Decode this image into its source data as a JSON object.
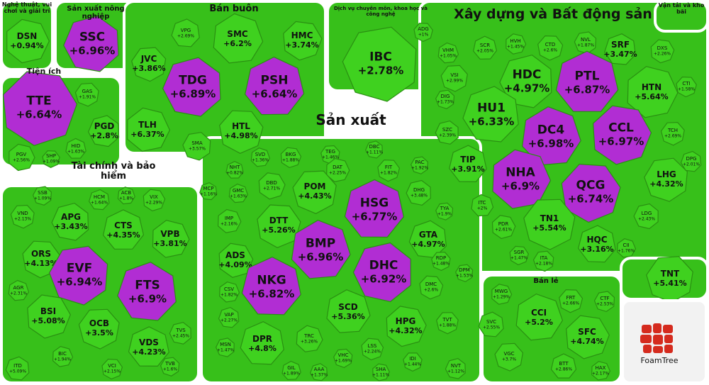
{
  "chart_data": {
    "type": "treemap",
    "logo": "FoamTree",
    "groups": [
      {
        "name": "Nghệ thuật, vui chơi và giải trí",
        "cells": [
          {
            "label": "DSN",
            "value": 0.94,
            "value_label": "+0.94%",
            "color": "#3fd11f"
          }
        ]
      },
      {
        "name": "Sản xuất nông nghiệp",
        "cells": [
          {
            "label": "SSC",
            "value": 6.96,
            "value_label": "+6.96%",
            "color": "#b12dd3"
          }
        ]
      },
      {
        "name": "Tiện ích",
        "cells": [
          {
            "label": "TTE",
            "value": 6.64,
            "value_label": "+6.64%",
            "color": "#b12dd3"
          },
          {
            "label": "GAS",
            "value": 1.91,
            "value_label": "+1.91%",
            "color": "#3fd11f"
          },
          {
            "label": "PGD",
            "value": 2.8,
            "value_label": "+2.8%",
            "color": "#3fd11f"
          },
          {
            "label": "HID",
            "value": 1.63,
            "value_label": "+1.63%",
            "color": "#3fd11f"
          },
          {
            "label": "PGV",
            "value": 2.56,
            "value_label": "+2.56%",
            "color": "#3fd11f"
          },
          {
            "label": "SHP",
            "value": 1.09,
            "value_label": "+1.09%",
            "color": "#3fd11f"
          }
        ]
      },
      {
        "name": "Bán buôn",
        "cells": [
          {
            "label": "VPG",
            "value": 2.69,
            "value_label": "+2.69%",
            "color": "#3fd11f"
          },
          {
            "label": "SMC",
            "value": 6.2,
            "value_label": "+6.2%",
            "color": "#3fd11f"
          },
          {
            "label": "HMC",
            "value": 3.74,
            "value_label": "+3.74%",
            "color": "#3fd11f"
          },
          {
            "label": "JVC",
            "value": 3.86,
            "value_label": "+3.86%",
            "color": "#3fd11f"
          },
          {
            "label": "TDG",
            "value": 6.89,
            "value_label": "+6.89%",
            "color": "#b12dd3"
          },
          {
            "label": "PSH",
            "value": 6.64,
            "value_label": "+6.64%",
            "color": "#b12dd3"
          },
          {
            "label": "TLH",
            "value": 6.37,
            "value_label": "+6.37%",
            "color": "#3fd11f"
          },
          {
            "label": "HTL",
            "value": 4.98,
            "value_label": "+4.98%",
            "color": "#3fd11f"
          },
          {
            "label": "SMA",
            "value": 3.57,
            "value_label": "+3.57%",
            "color": "#3fd11f"
          }
        ]
      },
      {
        "name": "Dịch vụ chuyên môn, khoa học và công nghệ",
        "cells": [
          {
            "label": "ADG",
            "value": 1,
            "value_label": "+1%",
            "color": "#3fd11f"
          },
          {
            "label": "IBC",
            "value": 2.78,
            "value_label": "+2.78%",
            "color": "#3fd11f"
          }
        ]
      },
      {
        "name": "Xây dựng và Bất động sản",
        "cells": [
          {
            "label": "SCR",
            "value": 2.05,
            "value_label": "+2.05%",
            "color": "#3fd11f"
          },
          {
            "label": "HVH",
            "value": 1.45,
            "value_label": "+1.45%",
            "color": "#3fd11f"
          },
          {
            "label": "CTD",
            "value": 2.6,
            "value_label": "+2.6%",
            "color": "#3fd11f"
          },
          {
            "label": "NVL",
            "value": 1.87,
            "value_label": "+1.87%",
            "color": "#3fd11f"
          },
          {
            "label": "SRF",
            "value": 3.47,
            "value_label": "+3.47%",
            "color": "#3fd11f"
          },
          {
            "label": "VHM",
            "value": 1.05,
            "value_label": "+1.05%",
            "color": "#3fd11f"
          },
          {
            "label": "DXS",
            "value": 2.26,
            "value_label": "+2.26%",
            "color": "#3fd11f"
          },
          {
            "label": "VSI",
            "value": 2.99,
            "value_label": "+2.99%",
            "color": "#3fd11f"
          },
          {
            "label": "HDC",
            "value": 4.97,
            "value_label": "+4.97%",
            "color": "#3fd11f"
          },
          {
            "label": "PTL",
            "value": 6.87,
            "value_label": "+6.87%",
            "color": "#b12dd3"
          },
          {
            "label": "HTN",
            "value": 5.64,
            "value_label": "+5.64%",
            "color": "#3fd11f"
          },
          {
            "label": "CTI",
            "value": 1.58,
            "value_label": "+1.58%",
            "color": "#3fd11f"
          },
          {
            "label": "DIG",
            "value": 1.73,
            "value_label": "+1.73%",
            "color": "#3fd11f"
          },
          {
            "label": "HU1",
            "value": 6.33,
            "value_label": "+6.33%",
            "color": "#3fd11f"
          },
          {
            "label": "DC4",
            "value": 6.98,
            "value_label": "+6.98%",
            "color": "#b12dd3"
          },
          {
            "label": "CCL",
            "value": 6.97,
            "value_label": "+6.97%",
            "color": "#b12dd3"
          },
          {
            "label": "TCH",
            "value": 2.69,
            "value_label": "+2.69%",
            "color": "#3fd11f"
          },
          {
            "label": "SZC",
            "value": 2.39,
            "value_label": "+2.39%",
            "color": "#3fd11f"
          },
          {
            "label": "TIP",
            "value": 3.91,
            "value_label": "+3.91%",
            "color": "#3fd11f"
          },
          {
            "label": "NHA",
            "value": 6.9,
            "value_label": "+6.9%",
            "color": "#b12dd3"
          },
          {
            "label": "QCG",
            "value": 6.74,
            "value_label": "+6.74%",
            "color": "#b12dd3"
          },
          {
            "label": "LHG",
            "value": 4.32,
            "value_label": "+4.32%",
            "color": "#3fd11f"
          },
          {
            "label": "DPG",
            "value": 2.01,
            "value_label": "+2.01%",
            "color": "#3fd11f"
          },
          {
            "label": "ITC",
            "value": 2,
            "value_label": "+2%",
            "color": "#3fd11f"
          },
          {
            "label": "PDR",
            "value": 2.61,
            "value_label": "+2.61%",
            "color": "#3fd11f"
          },
          {
            "label": "TN1",
            "value": 5.54,
            "value_label": "+5.54%",
            "color": "#3fd11f"
          },
          {
            "label": "LDG",
            "value": 2.43,
            "value_label": "+2.43%",
            "color": "#3fd11f"
          },
          {
            "label": "HQC",
            "value": 3.16,
            "value_label": "+3.16%",
            "color": "#3fd11f"
          },
          {
            "label": "CII",
            "value": 1.76,
            "value_label": "+1.76%",
            "color": "#3fd11f"
          },
          {
            "label": "SGR",
            "value": 1.47,
            "value_label": "+1.47%",
            "color": "#3fd11f"
          },
          {
            "label": "ITA",
            "value": 2.18,
            "value_label": "+2.18%",
            "color": "#3fd11f"
          }
        ]
      },
      {
        "name": "Vận tải và kho bãi",
        "cells": [
          {
            "label": "TNT",
            "value": 5.41,
            "value_label": "+5.41%",
            "color": "#3fd11f"
          }
        ]
      },
      {
        "name": "Sản xuất",
        "cells": [
          {
            "label": "SVD",
            "value": 1.36,
            "value_label": "+1.36%",
            "color": "#3fd11f"
          },
          {
            "label": "BKG",
            "value": 1.88,
            "value_label": "+1.88%",
            "color": "#3fd11f"
          },
          {
            "label": "TEG",
            "value": 1.46,
            "value_label": "+1.46%",
            "color": "#3fd11f"
          },
          {
            "label": "DBC",
            "value": 1.11,
            "value_label": "+1.11%",
            "color": "#3fd11f"
          },
          {
            "label": "NHT",
            "value": 0.82,
            "value_label": "+0.82%",
            "color": "#3fd11f"
          },
          {
            "label": "DAT",
            "value": 2.25,
            "value_label": "+2.25%",
            "color": "#3fd11f"
          },
          {
            "label": "FIT",
            "value": 1.82,
            "value_label": "+1.82%",
            "color": "#3fd11f"
          },
          {
            "label": "PAC",
            "value": 1.92,
            "value_label": "+1.92%",
            "color": "#3fd11f"
          },
          {
            "label": "MCP",
            "value": 1.16,
            "value_label": "+1.16%",
            "color": "#3fd11f"
          },
          {
            "label": "GMC",
            "value": 1.63,
            "value_label": "+1.63%",
            "color": "#3fd11f"
          },
          {
            "label": "DBD",
            "value": 2.71,
            "value_label": "+2.71%",
            "color": "#3fd11f"
          },
          {
            "label": "POM",
            "value": 4.43,
            "value_label": "+4.43%",
            "color": "#3fd11f"
          },
          {
            "label": "DHG",
            "value": 3.48,
            "value_label": "+3.48%",
            "color": "#3fd11f"
          },
          {
            "label": "HSG",
            "value": 6.77,
            "value_label": "+6.77%",
            "color": "#b12dd3"
          },
          {
            "label": "IMP",
            "value": 2.16,
            "value_label": "+2.16%",
            "color": "#3fd11f"
          },
          {
            "label": "DTT",
            "value": 5.26,
            "value_label": "+5.26%",
            "color": "#3fd11f"
          },
          {
            "label": "TYA",
            "value": 1.9,
            "value_label": "+1.9%",
            "color": "#3fd11f"
          },
          {
            "label": "GTA",
            "value": 4.97,
            "value_label": "+4.97%",
            "color": "#3fd11f"
          },
          {
            "label": "BMP",
            "value": 6.96,
            "value_label": "+6.96%",
            "color": "#b12dd3"
          },
          {
            "label": "ADS",
            "value": 4.09,
            "value_label": "+4.09%",
            "color": "#3fd11f"
          },
          {
            "label": "RDP",
            "value": 1.48,
            "value_label": "+1.48%",
            "color": "#3fd11f"
          },
          {
            "label": "DHC",
            "value": 6.92,
            "value_label": "+6.92%",
            "color": "#b12dd3"
          },
          {
            "label": "NKG",
            "value": 6.82,
            "value_label": "+6.82%",
            "color": "#b12dd3"
          },
          {
            "label": "CSV",
            "value": 1.82,
            "value_label": "+1.82%",
            "color": "#3fd11f"
          },
          {
            "label": "DMC",
            "value": 2.6,
            "value_label": "+2.6%",
            "color": "#3fd11f"
          },
          {
            "label": "DPM",
            "value": 1.53,
            "value_label": "+1.53%",
            "color": "#3fd11f"
          },
          {
            "label": "VAP",
            "value": 2.27,
            "value_label": "+2.27%",
            "color": "#3fd11f"
          },
          {
            "label": "SCD",
            "value": 5.36,
            "value_label": "+5.36%",
            "color": "#3fd11f"
          },
          {
            "label": "HPG",
            "value": 4.32,
            "value_label": "+4.32%",
            "color": "#3fd11f"
          },
          {
            "label": "TVT",
            "value": 1.88,
            "value_label": "+1.88%",
            "color": "#3fd11f"
          },
          {
            "label": "MSN",
            "value": 1.47,
            "value_label": "+1.47%",
            "color": "#3fd11f"
          },
          {
            "label": "DPR",
            "value": 4.8,
            "value_label": "+4.8%",
            "color": "#3fd11f"
          },
          {
            "label": "TRC",
            "value": 3.26,
            "value_label": "+3.26%",
            "color": "#3fd11f"
          },
          {
            "label": "LSS",
            "value": 2.24,
            "value_label": "+2.24%",
            "color": "#3fd11f"
          },
          {
            "label": "VHC",
            "value": 1.69,
            "value_label": "+1.69%",
            "color": "#3fd11f"
          },
          {
            "label": "AAA",
            "value": 1.37,
            "value_label": "+1.37%",
            "color": "#3fd11f"
          },
          {
            "label": "GIL",
            "value": 1.89,
            "value_label": "+1.89%",
            "color": "#3fd11f"
          },
          {
            "label": "SHA",
            "value": 1.11,
            "value_label": "+1.11%",
            "color": "#3fd11f"
          },
          {
            "label": "IDI",
            "value": 1.44,
            "value_label": "+1.44%",
            "color": "#3fd11f"
          }
        ]
      },
      {
        "name": "Tài chính và bảo hiểm",
        "cells": [
          {
            "label": "SSB",
            "value": 1.09,
            "value_label": "+1.09%",
            "color": "#3fd11f"
          },
          {
            "label": "HCM",
            "value": 1.64,
            "value_label": "+1.64%",
            "color": "#3fd11f"
          },
          {
            "label": "ACB",
            "value": 1.8,
            "value_label": "+1.8%",
            "color": "#3fd11f"
          },
          {
            "label": "VIX",
            "value": 2.29,
            "value_label": "+2.29%",
            "color": "#3fd11f"
          },
          {
            "label": "VND",
            "value": 2.13,
            "value_label": "+2.13%",
            "color": "#3fd11f"
          },
          {
            "label": "APG",
            "value": 3.43,
            "value_label": "+3.43%",
            "color": "#3fd11f"
          },
          {
            "label": "CTS",
            "value": 4.35,
            "value_label": "+4.35%",
            "color": "#3fd11f"
          },
          {
            "label": "VPB",
            "value": 3.81,
            "value_label": "+3.81%",
            "color": "#3fd11f"
          },
          {
            "label": "ORS",
            "value": 4.13,
            "value_label": "+4.13%",
            "color": "#3fd11f"
          },
          {
            "label": "EVF",
            "value": 6.94,
            "value_label": "+6.94%",
            "color": "#b12dd3"
          },
          {
            "label": "FTS",
            "value": 6.9,
            "value_label": "+6.9%",
            "color": "#b12dd3"
          },
          {
            "label": "AGR",
            "value": 2.31,
            "value_label": "+2.31%",
            "color": "#3fd11f"
          },
          {
            "label": "BSI",
            "value": 5.08,
            "value_label": "+5.08%",
            "color": "#3fd11f"
          },
          {
            "label": "OCB",
            "value": 3.5,
            "value_label": "+3.5%",
            "color": "#3fd11f"
          },
          {
            "label": "TVS",
            "value": 2.45,
            "value_label": "+2.45%",
            "color": "#3fd11f"
          },
          {
            "label": "VDS",
            "value": 4.23,
            "value_label": "+4.23%",
            "color": "#3fd11f"
          },
          {
            "label": "BIC",
            "value": 1.94,
            "value_label": "+1.94%",
            "color": "#3fd11f"
          },
          {
            "label": "VCI",
            "value": 2.15,
            "value_label": "+2.15%",
            "color": "#3fd11f"
          },
          {
            "label": "TVB",
            "value": 1.6,
            "value_label": "+1.6%",
            "color": "#3fd11f"
          },
          {
            "label": "ITD",
            "value": 5.09,
            "value_label": "+5.09%",
            "color": "#3fd11f"
          }
        ]
      },
      {
        "name": "Bán lẻ",
        "cells": [
          {
            "label": "MWG",
            "value": 1.29,
            "value_label": "+1.29%",
            "color": "#3fd11f"
          },
          {
            "label": "FRT",
            "value": 2.66,
            "value_label": "+2.66%",
            "color": "#3fd11f"
          },
          {
            "label": "CTF",
            "value": 2.53,
            "value_label": "+2.53%",
            "color": "#3fd11f"
          },
          {
            "label": "SVC",
            "value": 2.55,
            "value_label": "+2.55%",
            "color": "#3fd11f"
          },
          {
            "label": "CCI",
            "value": 5.2,
            "value_label": "+5.2%",
            "color": "#3fd11f"
          },
          {
            "label": "SFC",
            "value": 4.74,
            "value_label": "+4.74%",
            "color": "#3fd11f"
          },
          {
            "label": "VGC",
            "value": 3.7,
            "value_label": "+3.7%",
            "color": "#3fd11f"
          },
          {
            "label": "NVT",
            "value": 1.12,
            "value_label": "+1.12%",
            "color": "#3fd11f"
          },
          {
            "label": "BTT",
            "value": 2.86,
            "value_label": "+2.86%",
            "color": "#3fd11f"
          },
          {
            "label": "HAX",
            "value": 2.17,
            "value_label": "+2.17%",
            "color": "#3fd11f"
          }
        ]
      }
    ]
  }
}
